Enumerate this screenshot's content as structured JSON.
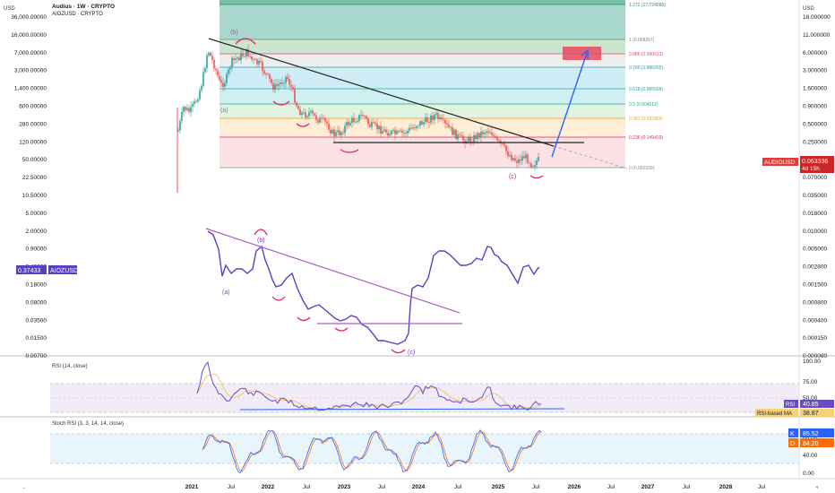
{
  "header": {
    "title": "Audius · 1W · CRYPTO",
    "subtitle": "AIOZUSD · CRYPTO",
    "currency_left": "USD",
    "currency_right": "USD"
  },
  "colors": {
    "audio_up": "#26a69a",
    "audio_down": "#ef5350",
    "aioz_line": "#5b3fc4",
    "trend_purple": "#b05bc4",
    "wave_red": "#e0245e",
    "projection": "#2962ff",
    "rsi_line": "#6a4bc4",
    "rsi_ma": "#f5c05a",
    "stoch_k": "#2962ff",
    "stoch_d": "#ff6d00"
  },
  "chart_data": [
    {
      "type": "candlestick",
      "name": "AUDIOUSD",
      "scale": "log",
      "left_ticks": [
        "36,000.00000",
        "16,000.00000",
        "7,000.00000",
        "3,000.00000",
        "1,400.00000",
        "600.00000",
        "280.00000",
        "120.00000",
        "50.00000",
        "22.50000",
        "10.50000",
        "5.00000",
        "2.00000",
        "0.90000",
        "0.40000",
        "0.18000",
        "0.08000",
        "0.03500",
        "0.01500",
        "0.00700"
      ],
      "right_ticks": [
        "18.000000",
        "11.000000",
        "6.000000",
        "3.000000",
        "1.600000",
        "0.900000",
        "0.500000",
        "0.250000",
        "0.130000",
        "0.070000",
        "0.035000",
        "0.018000",
        "0.010000",
        "0.005000",
        "0.002800",
        "0.001500",
        "0.000800",
        "0.000400",
        "0.000150",
        "0.000080"
      ],
      "fib_levels": [
        {
          "label": "1.272 (17.724266)",
          "ratio": 1.272
        },
        {
          "label": "1 (5.058257)",
          "ratio": 1
        },
        {
          "label": "0.886 (2.990613)",
          "ratio": 0.886
        },
        {
          "label": "0.786 (1.886055)",
          "ratio": 0.786
        },
        {
          "label": "0.618 (0.865568)",
          "ratio": 0.618
        },
        {
          "label": "0.5 (0.504612)",
          "ratio": 0.5
        },
        {
          "label": "0.382 (0.292856)",
          "ratio": 0.382
        },
        {
          "label": "0.236 (0.149419)",
          "ratio": 0.236
        },
        {
          "label": "0 (0.050339)",
          "ratio": 0
        }
      ],
      "wave_labels": [
        "(a)",
        "(b)",
        "(c)"
      ],
      "last_price": {
        "symbol": "AUDIOUSD",
        "value": "0.063336",
        "countdown": "4d 15h"
      }
    },
    {
      "type": "line",
      "name": "AIOZUSD",
      "value_label": "0.37433",
      "wave_labels": [
        "(a)",
        "(b)",
        "(c)"
      ]
    },
    {
      "type": "line",
      "name": "RSI",
      "title": "RSI (14, close)",
      "ticks": [
        "100.00",
        "75.00",
        "50.00",
        "25.00"
      ],
      "rsi_value": "40.85",
      "rsi_label": "RSI",
      "ma_label": "RSI-based MA",
      "ma_value": "38.87"
    },
    {
      "type": "line",
      "name": "Stoch RSI",
      "title": "Stoch RSI (3, 3, 14, 14, close)",
      "ticks": [
        "80.00",
        "40.00",
        "0.00"
      ],
      "k_label": "K",
      "k_value": "85.52",
      "d_label": "D",
      "d_value": "84.20"
    }
  ],
  "time_axis": {
    "labels": [
      "2021",
      "Jul",
      "2022",
      "Jul",
      "2023",
      "Jul",
      "2024",
      "Jul",
      "2025",
      "Jul",
      "2026",
      "Jul",
      "2027",
      "Jul",
      "2028",
      "Jul"
    ]
  }
}
